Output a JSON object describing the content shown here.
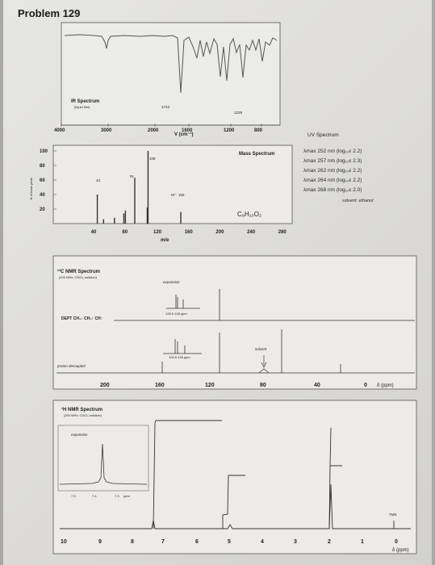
{
  "page": {
    "title": "Problem 129"
  },
  "ir": {
    "title": "IR Spectrum",
    "subtitle": "(liquid film)",
    "xlabel": "V (cm⁻¹)",
    "ticks": [
      "4000",
      "3000",
      "2000",
      "1600",
      "1200",
      "800"
    ],
    "peak_labels": [
      "1743",
      "1229"
    ]
  },
  "mass": {
    "title": "Mass Spectrum",
    "ylabel": "% of base peak",
    "xlabel": "m/e",
    "yticks": [
      "100",
      "80",
      "60",
      "40",
      "20"
    ],
    "xticks": [
      "40",
      "80",
      "120",
      "160",
      "200",
      "240",
      "280"
    ],
    "peak_labels": [
      "43",
      "91",
      "108",
      "M⁺· 150"
    ],
    "formula": "C₉H₁₀O₂",
    "peaks": [
      {
        "mz": 43,
        "rel": 40
      },
      {
        "mz": 51,
        "rel": 6
      },
      {
        "mz": 65,
        "rel": 8
      },
      {
        "mz": 77,
        "rel": 14
      },
      {
        "mz": 79,
        "rel": 18
      },
      {
        "mz": 91,
        "rel": 63
      },
      {
        "mz": 107,
        "rel": 22
      },
      {
        "mz": 108,
        "rel": 100
      },
      {
        "mz": 150,
        "rel": 16
      }
    ]
  },
  "uv": {
    "title": "UV Spectrum",
    "lines": [
      "λmax 252 nm (log₁₀ε 2.2)",
      "λmax 257 nm (log₁₀ε 2.3)",
      "λmax 262 nm (log₁₀ε 2.2)",
      "λmax 264 nm (log₁₀ε 2.2)",
      "λmax 268 nm (log₁₀ε 2.0)"
    ],
    "solvent": "solvent: ethanol"
  },
  "c13": {
    "title": "¹³C NMR Spectrum",
    "subtitle": "(100 MHz, CDCl₃ solution)",
    "expansion_label": "expansion",
    "dept_label": "DEPT  CH₃↓  CH₂↑  CH↑",
    "exp_ticks_top": "128.5   128 ppm",
    "exp_ticks_bottom": "128.5   128 ppm",
    "solvent_label": "solvent",
    "proton_decoupled": "proton decoupled",
    "xticks": [
      "200",
      "160",
      "120",
      "80",
      "40",
      "0"
    ],
    "xlabel": "δ (ppm)"
  },
  "h1": {
    "title": "¹H NMR Spectrum",
    "subtitle": "(200 MHz, CDCl₃ solution)",
    "expansion_label": "expansion",
    "exp_ticks": [
      "7.5",
      "7.4",
      "7.3",
      "ppm"
    ],
    "tms": "TMS",
    "xticks": [
      "10",
      "9",
      "8",
      "7",
      "6",
      "5",
      "4",
      "3",
      "2",
      "1",
      "0"
    ],
    "xlabel": "δ (ppm)"
  }
}
